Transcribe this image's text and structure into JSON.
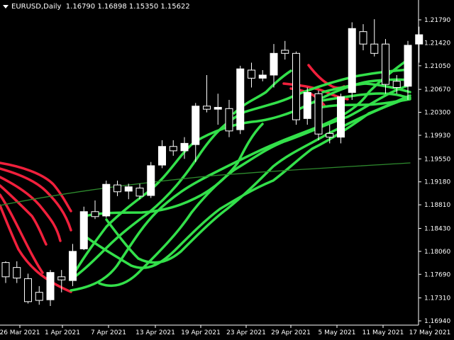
{
  "header": {
    "symbol": "EURUSD,Daily",
    "ohlc": "1.16790 1.16898 1.15350 1.15622"
  },
  "colors": {
    "background": "#000000",
    "axis": "#ffffff",
    "bull": "#ffffff",
    "bear": "#ffffff",
    "ribbon_up": "#33e04a",
    "ribbon_down": "#f0203c",
    "ma": "#2e8b2e"
  },
  "chart_data": {
    "type": "candlestick",
    "y_ticks": [
      "1.21790",
      "1.21420",
      "1.21050",
      "1.20670",
      "1.20300",
      "1.19930",
      "1.19550",
      "1.19180",
      "1.18810",
      "1.18430",
      "1.18060",
      "1.17690",
      "1.17310",
      "1.16940"
    ],
    "ylim": [
      1.168,
      1.2195
    ],
    "x_ticks": [
      "26 Mar 2021",
      "1 Apr 2021",
      "7 Apr 2021",
      "13 Apr 2021",
      "19 Apr 2021",
      "23 Apr 2021",
      "29 Apr 2021",
      "5 May 2021",
      "11 May 2021",
      "17 May 2021"
    ],
    "candles": [
      {
        "o": 1.1788,
        "h": 1.179,
        "l": 1.1755,
        "c": 1.1765
      },
      {
        "o": 1.178,
        "h": 1.179,
        "l": 1.1755,
        "c": 1.1763
      },
      {
        "o": 1.1762,
        "h": 1.177,
        "l": 1.1722,
        "c": 1.1725
      },
      {
        "o": 1.174,
        "h": 1.175,
        "l": 1.172,
        "c": 1.1727
      },
      {
        "o": 1.1728,
        "h": 1.1776,
        "l": 1.1718,
        "c": 1.1772
      },
      {
        "o": 1.1765,
        "h": 1.1776,
        "l": 1.174,
        "c": 1.176
      },
      {
        "o": 1.1759,
        "h": 1.1818,
        "l": 1.175,
        "c": 1.1806
      },
      {
        "o": 1.181,
        "h": 1.1878,
        "l": 1.1808,
        "c": 1.187
      },
      {
        "o": 1.187,
        "h": 1.1888,
        "l": 1.1858,
        "c": 1.1862
      },
      {
        "o": 1.1863,
        "h": 1.192,
        "l": 1.186,
        "c": 1.1914
      },
      {
        "o": 1.1913,
        "h": 1.192,
        "l": 1.1895,
        "c": 1.1902
      },
      {
        "o": 1.1903,
        "h": 1.1915,
        "l": 1.189,
        "c": 1.191
      },
      {
        "o": 1.1908,
        "h": 1.1915,
        "l": 1.189,
        "c": 1.1895
      },
      {
        "o": 1.1896,
        "h": 1.195,
        "l": 1.1892,
        "c": 1.1944
      },
      {
        "o": 1.1945,
        "h": 1.1985,
        "l": 1.194,
        "c": 1.1975
      },
      {
        "o": 1.1975,
        "h": 1.1985,
        "l": 1.196,
        "c": 1.1968
      },
      {
        "o": 1.1968,
        "h": 1.199,
        "l": 1.1955,
        "c": 1.198
      },
      {
        "o": 1.1978,
        "h": 1.2045,
        "l": 1.195,
        "c": 1.204
      },
      {
        "o": 1.204,
        "h": 1.209,
        "l": 1.203,
        "c": 1.2035
      },
      {
        "o": 1.2035,
        "h": 1.206,
        "l": 1.201,
        "c": 1.2038
      },
      {
        "o": 1.2036,
        "h": 1.205,
        "l": 1.199,
        "c": 1.2
      },
      {
        "o": 1.2002,
        "h": 1.2105,
        "l": 1.1995,
        "c": 1.21
      },
      {
        "o": 1.2098,
        "h": 1.211,
        "l": 1.207,
        "c": 1.2085
      },
      {
        "o": 1.2085,
        "h": 1.2098,
        "l": 1.208,
        "c": 1.209
      },
      {
        "o": 1.209,
        "h": 1.214,
        "l": 1.207,
        "c": 1.2125
      },
      {
        "o": 1.213,
        "h": 1.2145,
        "l": 1.2115,
        "c": 1.2125
      },
      {
        "o": 1.2125,
        "h": 1.2128,
        "l": 1.201,
        "c": 1.2018
      },
      {
        "o": 1.202,
        "h": 1.207,
        "l": 1.201,
        "c": 1.2062
      },
      {
        "o": 1.206,
        "h": 1.2065,
        "l": 1.1985,
        "c": 1.1995
      },
      {
        "o": 1.1996,
        "h": 1.201,
        "l": 1.198,
        "c": 1.199
      },
      {
        "o": 1.199,
        "h": 1.206,
        "l": 1.198,
        "c": 1.2055
      },
      {
        "o": 1.2062,
        "h": 1.2175,
        "l": 1.205,
        "c": 1.2165
      },
      {
        "o": 1.216,
        "h": 1.2172,
        "l": 1.213,
        "c": 1.214
      },
      {
        "o": 1.214,
        "h": 1.218,
        "l": 1.212,
        "c": 1.2125
      },
      {
        "o": 1.214,
        "h": 1.2148,
        "l": 1.206,
        "c": 1.2075
      },
      {
        "o": 1.208,
        "h": 1.209,
        "l": 1.206,
        "c": 1.207
      },
      {
        "o": 1.2072,
        "h": 1.2145,
        "l": 1.205,
        "c": 1.2138
      },
      {
        "o": 1.214,
        "h": 1.2168,
        "l": 1.211,
        "c": 1.2155
      }
    ],
    "grid": false,
    "legend": "none"
  }
}
